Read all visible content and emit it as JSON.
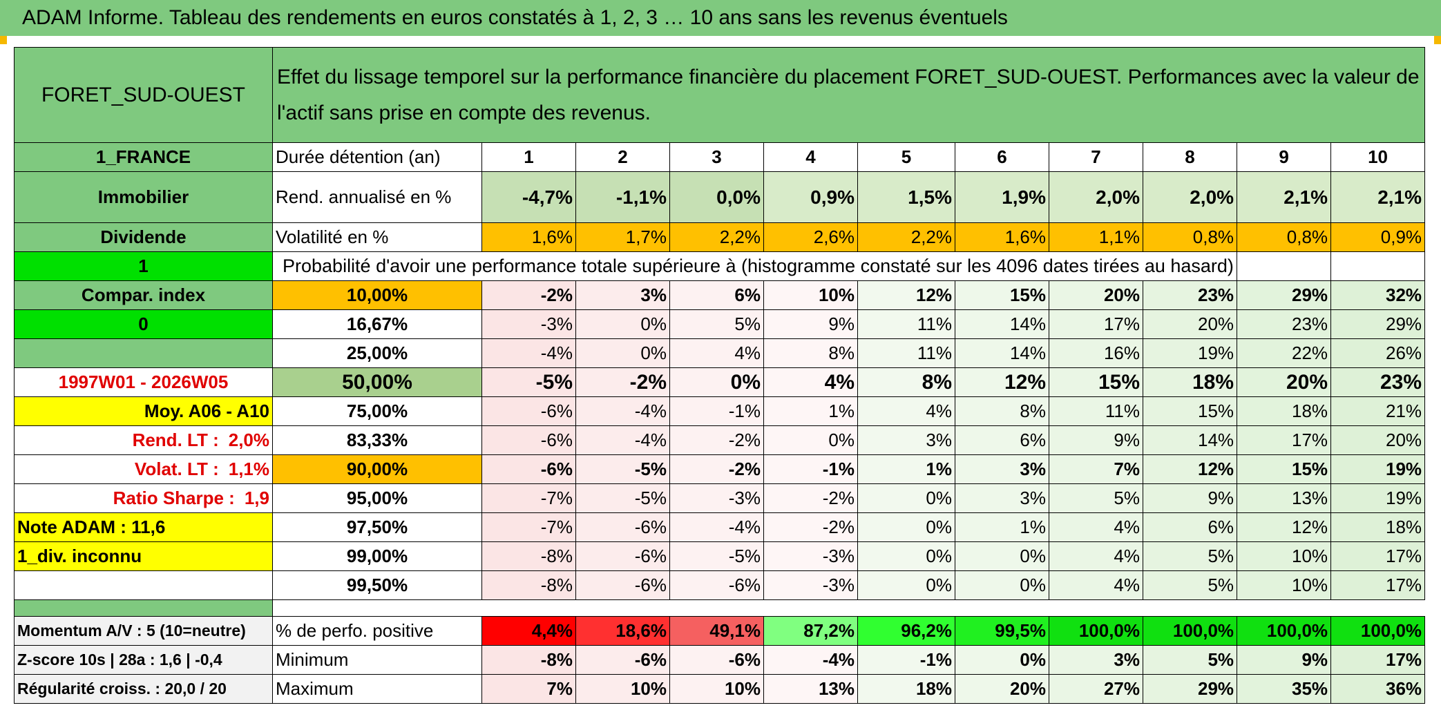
{
  "title": "ADAM Informe. Tableau des rendements en euros constatés à 1, 2, 3 … 10 ans sans les revenus éventuels",
  "fund": "FORET_SUD-OUEST",
  "description": "Effet du lissage temporel sur la performance financière du placement FORET_SUD-OUEST. Performances avec la valeur de l'actif sans prise en compte des revenus.",
  "side": {
    "country": "1_FRANCE",
    "category": "Immobilier",
    "dividend": "Dividende",
    "flag1": "1",
    "compar_index": "Compar. index",
    "flag0": "0",
    "period": "1997W01 - 2026W05",
    "moy": "Moy. A06 - A10",
    "rend_lt_label": "Rend. LT :",
    "rend_lt": "2,0%",
    "volat_lt_label": "Volat. LT :",
    "volat_lt": "1,1%",
    "sharpe_label": "Ratio Sharpe :",
    "sharpe": "1,9",
    "note": "Note ADAM : 11,6",
    "div": "1_div. inconnu",
    "momentum": "Momentum A/V : 5 (10=neutre)",
    "zscore": "Z-score 10s | 28a : 1,6 | -0,4",
    "regularite": "Régularité croiss. : 20,0 / 20"
  },
  "labels": {
    "duree": "Durée détention (an)",
    "rend": "Rend. annualisé en %",
    "volat": "Volatilité en %",
    "proba": "Probabilité d'avoir une performance totale supérieure à (histogramme constaté sur les 4096 dates tirées au hasard)",
    "perf_pos": "% de perfo. positive",
    "min": "Minimum",
    "max": "Maximum"
  },
  "years": [
    "1",
    "2",
    "3",
    "4",
    "5",
    "6",
    "7",
    "8",
    "9",
    "10"
  ],
  "rend": [
    "-4,7%",
    "-1,1%",
    "0,0%",
    "0,9%",
    "1,5%",
    "1,9%",
    "2,0%",
    "2,0%",
    "2,1%",
    "2,1%"
  ],
  "volat": [
    "1,6%",
    "1,7%",
    "2,2%",
    "2,6%",
    "2,2%",
    "1,6%",
    "1,1%",
    "0,8%",
    "0,8%",
    "0,9%"
  ],
  "quantiles": [
    {
      "p": "10,00%",
      "v": [
        "-2%",
        "3%",
        "6%",
        "10%",
        "12%",
        "15%",
        "20%",
        "23%",
        "29%",
        "32%"
      ]
    },
    {
      "p": "16,67%",
      "v": [
        "-3%",
        "0%",
        "5%",
        "9%",
        "11%",
        "14%",
        "17%",
        "20%",
        "23%",
        "29%"
      ]
    },
    {
      "p": "25,00%",
      "v": [
        "-4%",
        "0%",
        "4%",
        "8%",
        "11%",
        "14%",
        "16%",
        "19%",
        "22%",
        "26%"
      ]
    },
    {
      "p": "50,00%",
      "v": [
        "-5%",
        "-2%",
        "0%",
        "4%",
        "8%",
        "12%",
        "15%",
        "18%",
        "20%",
        "23%"
      ]
    },
    {
      "p": "75,00%",
      "v": [
        "-6%",
        "-4%",
        "-1%",
        "1%",
        "4%",
        "8%",
        "11%",
        "15%",
        "18%",
        "21%"
      ]
    },
    {
      "p": "83,33%",
      "v": [
        "-6%",
        "-4%",
        "-2%",
        "0%",
        "3%",
        "6%",
        "9%",
        "14%",
        "17%",
        "20%"
      ]
    },
    {
      "p": "90,00%",
      "v": [
        "-6%",
        "-5%",
        "-2%",
        "-1%",
        "1%",
        "3%",
        "7%",
        "12%",
        "15%",
        "19%"
      ]
    },
    {
      "p": "95,00%",
      "v": [
        "-7%",
        "-5%",
        "-3%",
        "-2%",
        "0%",
        "3%",
        "5%",
        "9%",
        "13%",
        "19%"
      ]
    },
    {
      "p": "97,50%",
      "v": [
        "-7%",
        "-6%",
        "-4%",
        "-2%",
        "0%",
        "1%",
        "4%",
        "6%",
        "12%",
        "18%"
      ]
    },
    {
      "p": "99,00%",
      "v": [
        "-8%",
        "-6%",
        "-5%",
        "-3%",
        "0%",
        "0%",
        "4%",
        "5%",
        "10%",
        "17%"
      ]
    },
    {
      "p": "99,50%",
      "v": [
        "-8%",
        "-6%",
        "-6%",
        "-3%",
        "0%",
        "0%",
        "4%",
        "5%",
        "10%",
        "17%"
      ]
    }
  ],
  "perf_pos": [
    "4,4%",
    "18,6%",
    "49,1%",
    "87,2%",
    "96,2%",
    "99,5%",
    "100,0%",
    "100,0%",
    "100,0%",
    "100,0%"
  ],
  "perf_pos_colors": [
    "#ff0000",
    "#ff3030",
    "#f56060",
    "#80ff80",
    "#30ff30",
    "#20f020",
    "#10e010",
    "#10e010",
    "#10e010",
    "#10e010"
  ],
  "min": [
    "-8%",
    "-6%",
    "-6%",
    "-4%",
    "-1%",
    "0%",
    "3%",
    "5%",
    "9%",
    "17%"
  ],
  "max": [
    "7%",
    "10%",
    "10%",
    "13%",
    "18%",
    "20%",
    "27%",
    "29%",
    "35%",
    "36%"
  ]
}
